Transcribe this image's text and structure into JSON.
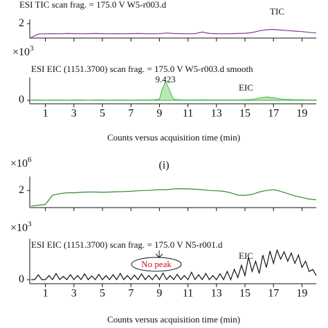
{
  "chart_data": [
    {
      "type": "line",
      "title": "ESI TIC scan frag. = 175.0 V W5-r003.d",
      "trace_label": "TIC",
      "xlim": [
        0,
        20
      ],
      "xticks": [
        1,
        3,
        5,
        7,
        9,
        11,
        13,
        15,
        17,
        19
      ],
      "xtick_labels": false,
      "ylim": [
        1.0,
        2.3
      ],
      "yticks": [
        2
      ],
      "color": "#7b3f8f",
      "fill": false,
      "x": [
        0,
        0.5,
        1,
        1.5,
        2,
        2.5,
        3,
        3.5,
        4,
        4.5,
        5,
        5.5,
        6,
        6.5,
        7,
        7.5,
        8,
        8.5,
        9,
        9.5,
        10,
        10.5,
        11,
        11.5,
        12,
        12.5,
        13,
        13.5,
        14,
        14.5,
        15,
        15.5,
        16,
        16.5,
        17,
        17.5,
        18,
        18.5,
        19,
        19.5,
        20
      ],
      "values": [
        1.05,
        1.28,
        1.3,
        1.31,
        1.3,
        1.32,
        1.31,
        1.3,
        1.31,
        1.32,
        1.31,
        1.3,
        1.31,
        1.3,
        1.31,
        1.32,
        1.31,
        1.3,
        1.31,
        1.35,
        1.32,
        1.31,
        1.3,
        1.31,
        1.42,
        1.32,
        1.31,
        1.3,
        1.31,
        1.32,
        1.33,
        1.38,
        1.5,
        1.58,
        1.6,
        1.56,
        1.52,
        1.48,
        1.45,
        1.4,
        1.35
      ]
    },
    {
      "type": "line",
      "title": "ESI EIC (1151.3700) scan frag. = 175.0 V W5-r003.d smooth",
      "trace_label": "EIC",
      "peak_label": "9.423",
      "y_multiplier": "×10",
      "y_multiplier_exp": "3",
      "xlim": [
        0,
        20
      ],
      "xticks": [
        1,
        3,
        5,
        7,
        9,
        11,
        13,
        15,
        17,
        19
      ],
      "xtick_labels": true,
      "xlabel": "Counts versus acquisition time (min)",
      "ylim": [
        -0.15,
        1.0
      ],
      "yticks": [
        0
      ],
      "color": "#5cbf5c",
      "fill": true,
      "x": [
        0,
        0.5,
        1,
        1.5,
        2,
        2.5,
        3,
        3.5,
        4,
        4.5,
        5,
        5.5,
        6,
        6.5,
        7,
        7.5,
        8,
        8.5,
        9,
        9.2,
        9.423,
        9.6,
        9.8,
        10,
        10.5,
        11,
        11.5,
        12,
        12.5,
        13,
        13.5,
        14,
        14.5,
        15,
        15.5,
        16,
        16.5,
        17,
        17.5,
        18,
        18.5,
        19,
        19.5,
        20
      ],
      "values": [
        0.02,
        0.02,
        0.01,
        0.02,
        0.02,
        0.01,
        0.02,
        0.02,
        0.01,
        0.02,
        0.02,
        0.01,
        0.02,
        0.02,
        0.01,
        0.02,
        0.02,
        0.02,
        0.05,
        0.5,
        0.82,
        0.6,
        0.3,
        0.05,
        0.02,
        0.02,
        0.02,
        0.03,
        0.02,
        0.02,
        0.02,
        0.02,
        0.02,
        0.03,
        0.04,
        0.1,
        0.15,
        0.12,
        0.06,
        0.04,
        0.03,
        0.03,
        0.02,
        0.02
      ]
    },
    {
      "type": "line",
      "y_multiplier": "×10",
      "y_multiplier_exp": "6",
      "xlim": [
        0,
        20
      ],
      "xticks": [
        1,
        3,
        5,
        7,
        9,
        11,
        13,
        15,
        17,
        19
      ],
      "xtick_labels": false,
      "ylim": [
        0.9,
        2.9
      ],
      "yticks": [
        2
      ],
      "color": "#2e8b2e",
      "fill": false,
      "x": [
        0,
        0.5,
        1,
        1.5,
        2,
        2.5,
        3,
        3.5,
        4,
        4.5,
        5,
        5.5,
        6,
        6.5,
        7,
        7.5,
        8,
        8.5,
        9,
        9.5,
        10,
        10.5,
        11,
        11.5,
        12,
        12.5,
        13,
        13.5,
        14,
        14.5,
        15,
        15.5,
        16,
        16.5,
        17,
        17.5,
        18,
        18.5,
        19,
        19.5,
        20
      ],
      "values": [
        1.0,
        1.05,
        1.1,
        1.7,
        1.8,
        1.85,
        1.85,
        1.88,
        1.9,
        1.9,
        1.88,
        1.9,
        1.92,
        1.93,
        1.95,
        1.98,
        2.0,
        2.02,
        2.05,
        2.05,
        2.1,
        2.12,
        2.1,
        2.08,
        2.05,
        2.0,
        1.98,
        1.95,
        1.85,
        1.7,
        1.68,
        1.75,
        1.9,
        2.0,
        2.05,
        1.95,
        1.8,
        1.65,
        1.55,
        1.45,
        1.4
      ]
    },
    {
      "type": "line",
      "title": "ESI EIC (1151.3700) scan frag. = 175.0 V N5-r001.d",
      "trace_label": "EIC",
      "callout": "No peak",
      "y_multiplier": "×10",
      "y_multiplier_exp": "3",
      "xlim": [
        0,
        20
      ],
      "xticks": [
        1,
        3,
        5,
        7,
        9,
        11,
        13,
        15,
        17,
        19
      ],
      "xtick_labels": true,
      "xlabel": "Counts versus acquisition time (min)",
      "ylim": [
        -0.1,
        1.0
      ],
      "yticks": [
        0
      ],
      "color": "#111111",
      "fill": false,
      "x": [
        0,
        0.25,
        0.5,
        0.75,
        1,
        1.25,
        1.5,
        1.75,
        2,
        2.25,
        2.5,
        2.75,
        3,
        3.25,
        3.5,
        3.75,
        4,
        4.25,
        4.5,
        4.75,
        5,
        5.25,
        5.5,
        5.75,
        6,
        6.25,
        6.5,
        6.75,
        7,
        7.25,
        7.5,
        7.75,
        8,
        8.25,
        8.5,
        8.75,
        9,
        9.25,
        9.5,
        9.75,
        10,
        10.25,
        10.5,
        10.75,
        11,
        11.25,
        11.5,
        11.75,
        12,
        12.25,
        12.5,
        12.75,
        13,
        13.25,
        13.5,
        13.75,
        14,
        14.25,
        14.5,
        14.75,
        15,
        15.25,
        15.5,
        15.75,
        16,
        16.25,
        16.5,
        16.75,
        17,
        17.25,
        17.5,
        17.75,
        18,
        18.25,
        18.5,
        18.75,
        19,
        19.25,
        19.5,
        19.75,
        20
      ],
      "values": [
        0,
        0,
        0.12,
        0,
        0,
        0.1,
        0,
        0.15,
        0,
        0.08,
        0,
        0.12,
        0,
        0.1,
        0,
        0.14,
        0,
        0.09,
        0,
        0.13,
        0,
        0.1,
        0,
        0.12,
        0,
        0.15,
        0,
        0.1,
        0,
        0.11,
        0,
        0.14,
        0,
        0.1,
        0,
        0.12,
        0,
        0.16,
        0,
        0.1,
        0,
        0.13,
        0,
        0.1,
        0,
        0.18,
        0,
        0.12,
        0,
        0.15,
        0,
        0.1,
        0,
        0.14,
        0,
        0.2,
        0,
        0.25,
        0.05,
        0.35,
        0.1,
        0.55,
        0.2,
        0.45,
        0.15,
        0.6,
        0.3,
        0.7,
        0.4,
        0.72,
        0.5,
        0.68,
        0.45,
        0.65,
        0.4,
        0.6,
        0.3,
        0.45,
        0.2,
        0.25,
        0.1
      ]
    }
  ],
  "panel_label": "(i)"
}
